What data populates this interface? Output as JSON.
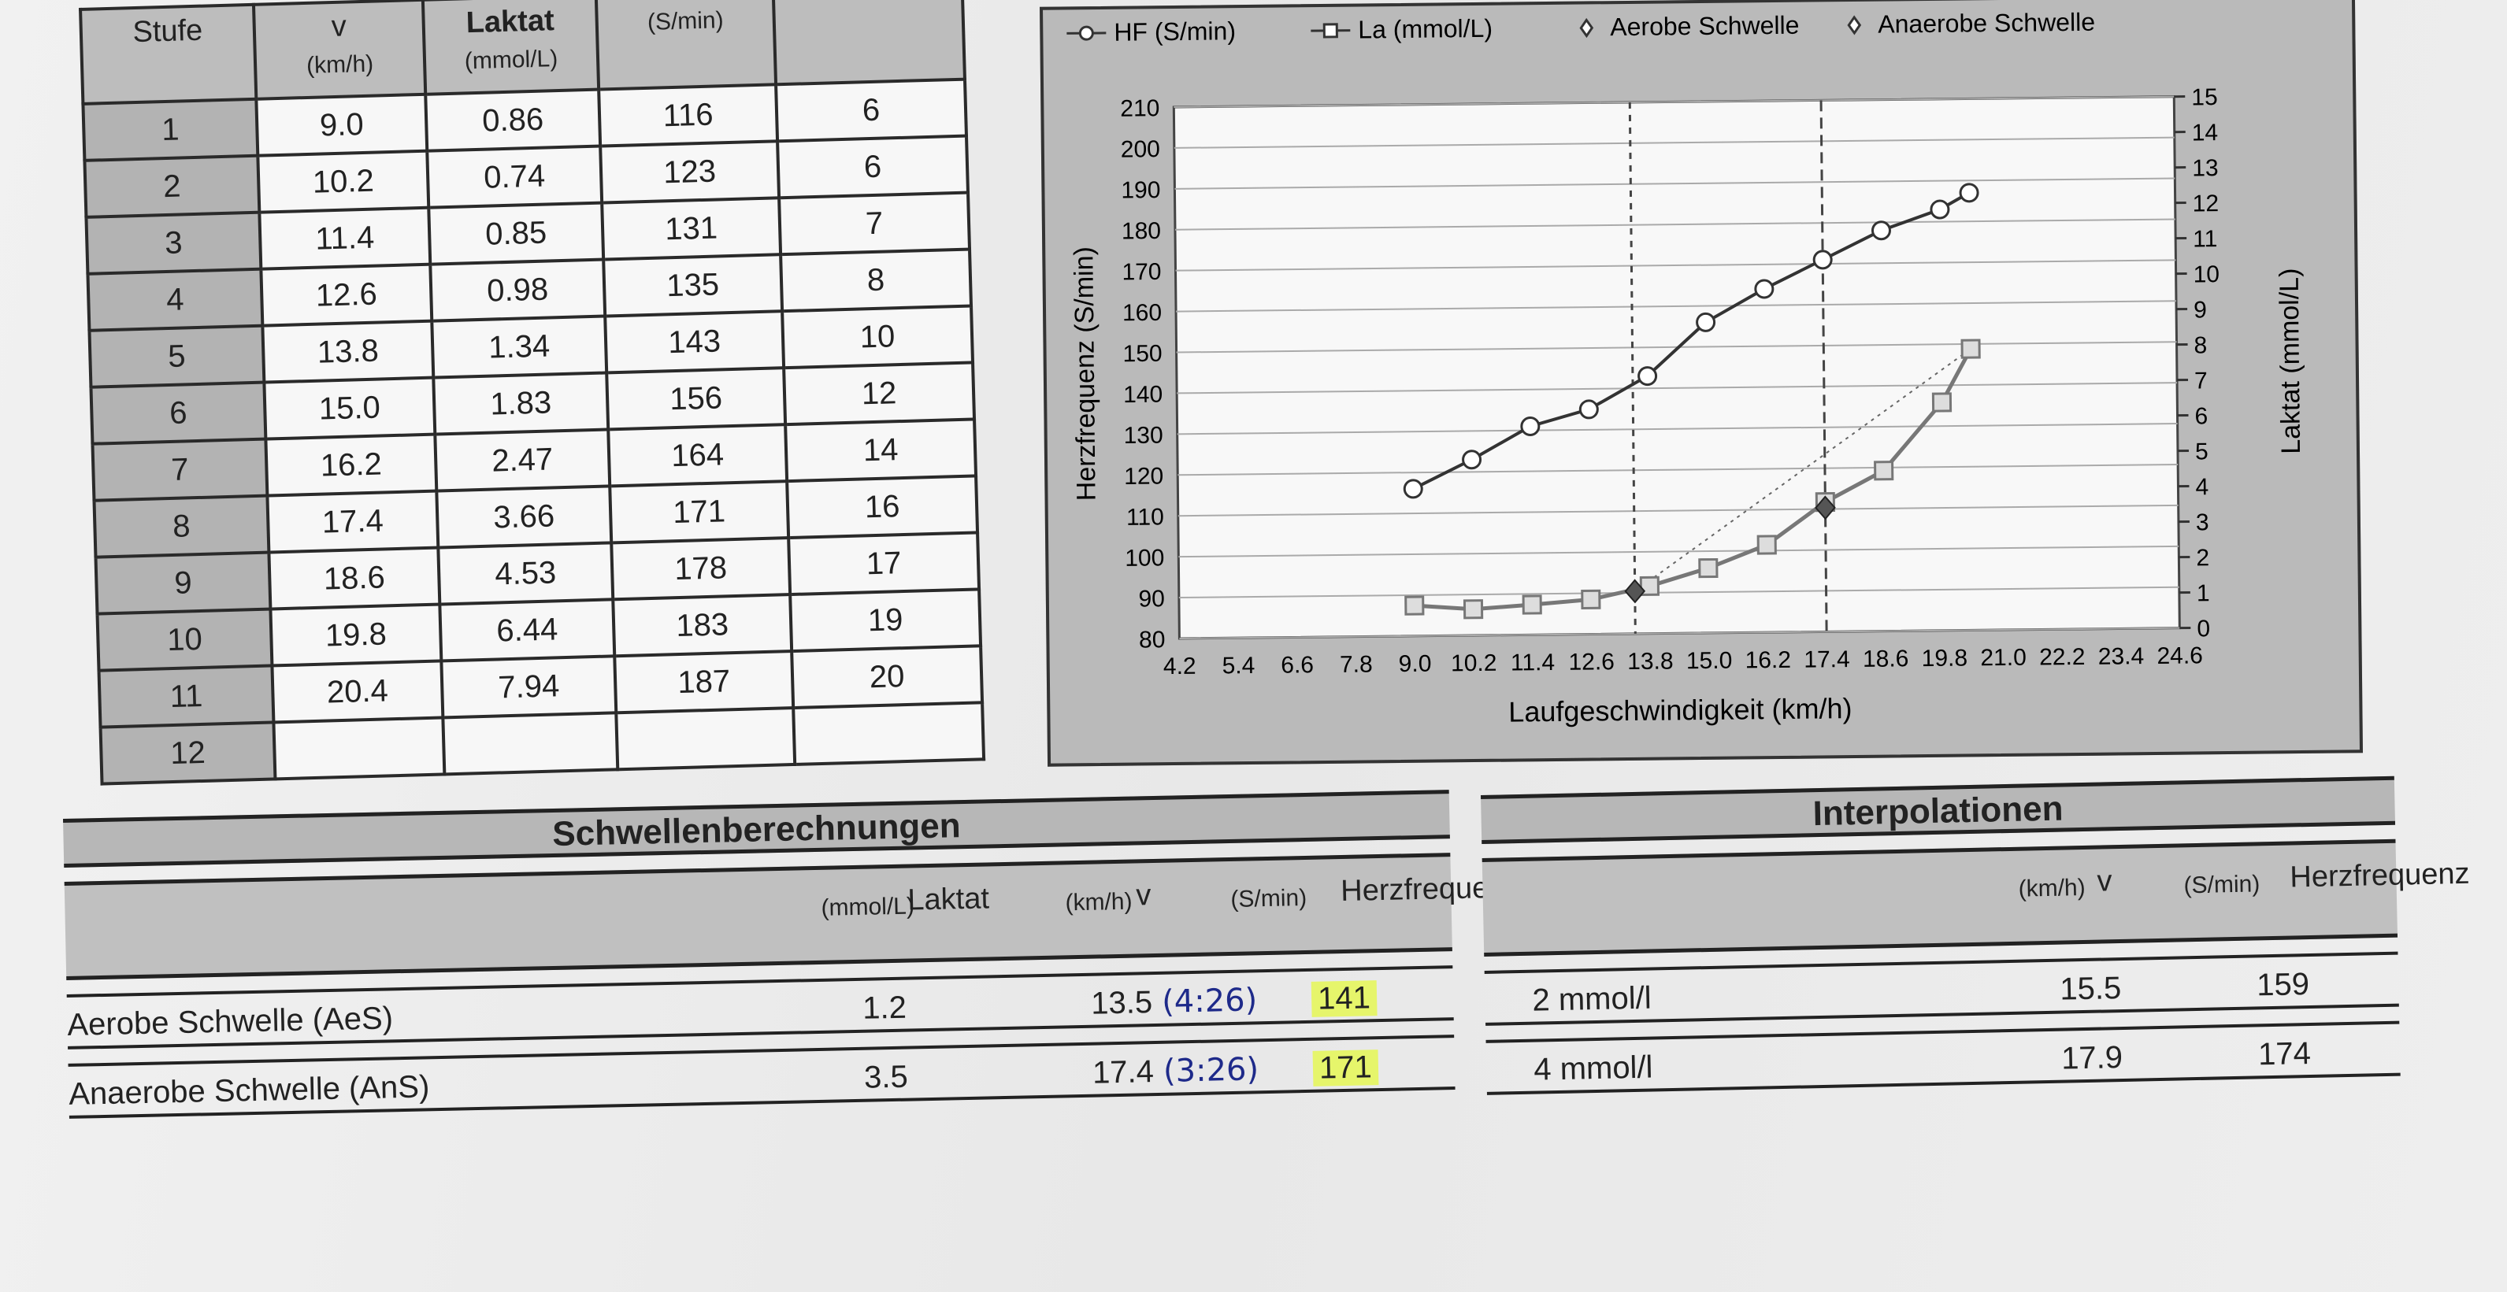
{
  "measurements": {
    "headers": {
      "stufe": "Stufe",
      "v": "v",
      "v_unit": "(km/h)",
      "laktat": "Laktat",
      "laktat_unit": "(mmol/L)",
      "hf": "",
      "hf_unit": "(S/min)",
      "extra": ""
    },
    "rows": [
      {
        "stufe": "1",
        "v": "9.0",
        "laktat": "0.86",
        "hf": "116",
        "extra": "6"
      },
      {
        "stufe": "2",
        "v": "10.2",
        "laktat": "0.74",
        "hf": "123",
        "extra": "6"
      },
      {
        "stufe": "3",
        "v": "11.4",
        "laktat": "0.85",
        "hf": "131",
        "extra": "7"
      },
      {
        "stufe": "4",
        "v": "12.6",
        "laktat": "0.98",
        "hf": "135",
        "extra": "8"
      },
      {
        "stufe": "5",
        "v": "13.8",
        "laktat": "1.34",
        "hf": "143",
        "extra": "10"
      },
      {
        "stufe": "6",
        "v": "15.0",
        "laktat": "1.83",
        "hf": "156",
        "extra": "12"
      },
      {
        "stufe": "7",
        "v": "16.2",
        "laktat": "2.47",
        "hf": "164",
        "extra": "14"
      },
      {
        "stufe": "8",
        "v": "17.4",
        "laktat": "3.66",
        "hf": "171",
        "extra": "16"
      },
      {
        "stufe": "9",
        "v": "18.6",
        "laktat": "4.53",
        "hf": "178",
        "extra": "17"
      },
      {
        "stufe": "10",
        "v": "19.8",
        "laktat": "6.44",
        "hf": "183",
        "extra": "19"
      },
      {
        "stufe": "11",
        "v": "20.4",
        "laktat": "7.94",
        "hf": "187",
        "extra": "20"
      },
      {
        "stufe": "12",
        "v": "",
        "laktat": "",
        "hf": "",
        "extra": ""
      }
    ]
  },
  "chart_data": {
    "type": "line",
    "title": "",
    "xlabel": "Laufgeschwindigkeit (km/h)",
    "ylabel": "Herzfrequenz (S/min)",
    "y2label": "Laktat (mmol/L)",
    "x_ticks": [
      "4.2",
      "5.4",
      "6.6",
      "7.8",
      "9.0",
      "10.2",
      "11.4",
      "12.6",
      "13.8",
      "15.0",
      "16.2",
      "17.4",
      "18.6",
      "19.8",
      "21.0",
      "22.2",
      "23.4",
      "24.6"
    ],
    "xlim": [
      4.2,
      24.6
    ],
    "ylim": [
      80,
      210
    ],
    "y_ticks": [
      80,
      90,
      100,
      110,
      120,
      130,
      140,
      150,
      160,
      170,
      180,
      190,
      200,
      210
    ],
    "y2lim": [
      0,
      15
    ],
    "y2_ticks": [
      0,
      1,
      2,
      3,
      4,
      5,
      6,
      7,
      8,
      9,
      10,
      11,
      12,
      13,
      14,
      15
    ],
    "grid": true,
    "legend": "top",
    "series": [
      {
        "name": "HF (S/min)",
        "axis": "left",
        "marker": "circle",
        "x": [
          9.0,
          10.2,
          11.4,
          12.6,
          13.8,
          15.0,
          16.2,
          17.4,
          18.6,
          19.8,
          20.4
        ],
        "y": [
          116,
          123,
          131,
          135,
          143,
          156,
          164,
          171,
          178,
          183,
          187
        ]
      },
      {
        "name": "La (mmol/L)",
        "axis": "right",
        "marker": "square",
        "x": [
          9.0,
          10.2,
          11.4,
          12.6,
          13.8,
          15.0,
          16.2,
          17.4,
          18.6,
          19.8,
          20.4
        ],
        "y": [
          0.86,
          0.74,
          0.85,
          0.98,
          1.34,
          1.83,
          2.47,
          3.66,
          4.53,
          6.44,
          7.94
        ]
      },
      {
        "name": "Aerobe Schwelle",
        "axis": "right",
        "marker": "diamond",
        "x": [
          13.5
        ],
        "y": [
          1.2
        ]
      },
      {
        "name": "Anaerobe Schwelle",
        "axis": "right",
        "marker": "diamond",
        "x": [
          17.4
        ],
        "y": [
          3.5
        ]
      }
    ],
    "colors": {
      "hf": "#333333",
      "la": "#777777",
      "threshold": "#444444"
    }
  },
  "schwellen": {
    "title": "Schwellenberechnungen",
    "headers": {
      "laktat": "Laktat",
      "laktat_unit": "(mmol/L)",
      "v": "v",
      "v_unit": "(km/h)",
      "hf": "Herzfrequenz",
      "hf_unit": "(S/min)"
    },
    "rows": [
      {
        "label": "Aerobe Schwelle (AeS)",
        "laktat": "1.2",
        "v": "13.5",
        "note": "(4:26)",
        "hf": "141"
      },
      {
        "label": "Anaerobe Schwelle (AnS)",
        "laktat": "3.5",
        "v": "17.4",
        "note": "(3:26)",
        "hf": "171"
      }
    ],
    "highlight_color": "#e6f56b",
    "note_color": "#1e2a8a"
  },
  "interpolationen": {
    "title": "Interpolationen",
    "headers": {
      "v": "v",
      "v_unit": "(km/h)",
      "hf": "Herzfrequenz",
      "hf_unit": "(S/min)"
    },
    "rows": [
      {
        "label": "2 mmol/l",
        "v": "15.5",
        "hf": "159"
      },
      {
        "label": "4 mmol/l",
        "v": "17.9",
        "hf": "174"
      }
    ]
  }
}
